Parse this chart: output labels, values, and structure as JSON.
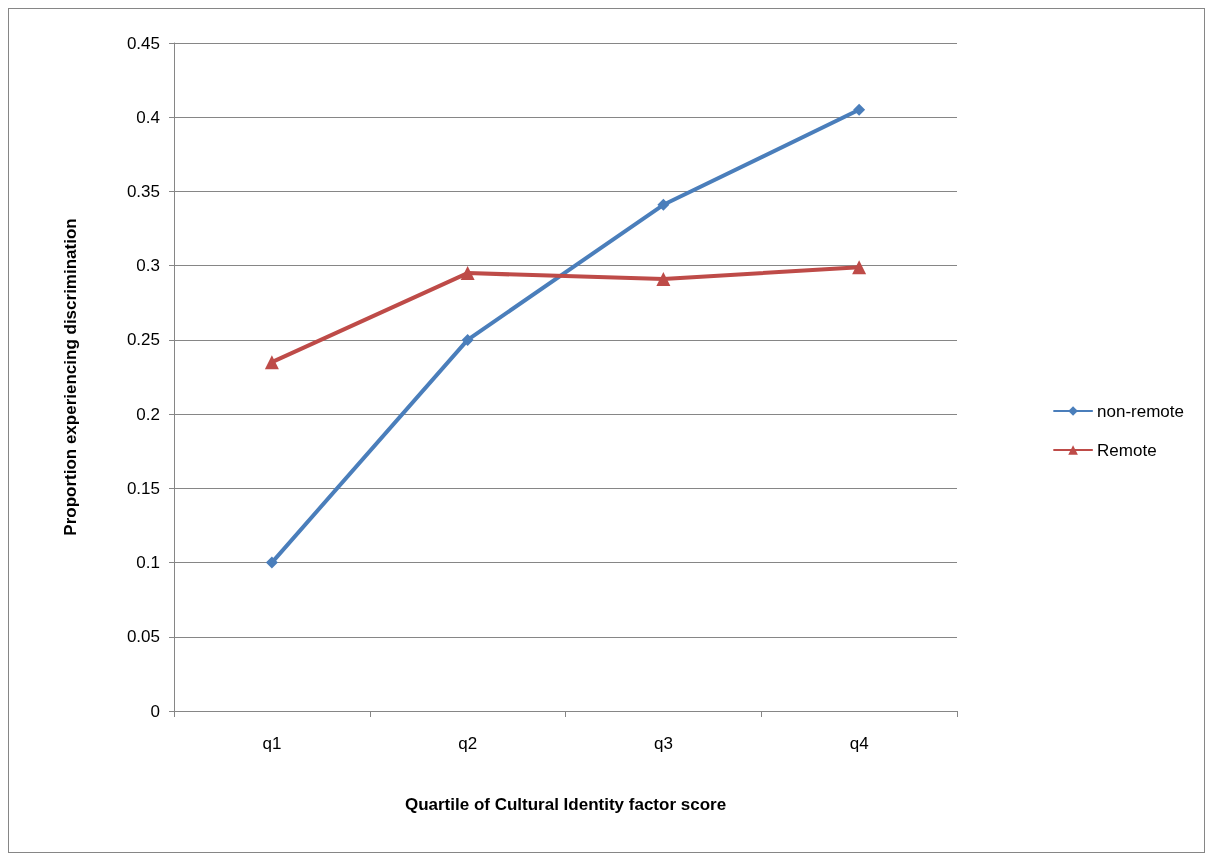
{
  "chart_data": {
    "type": "line",
    "xlabel": "Quartile of Cultural Identity factor score",
    "ylabel": "Proportion experiencing discrimination",
    "categories": [
      "q1",
      "q2",
      "q3",
      "q4"
    ],
    "series": [
      {
        "name": "non-remote",
        "color": "#4a7ebb",
        "marker": "diamond",
        "values": [
          0.1,
          0.25,
          0.341,
          0.405
        ]
      },
      {
        "name": "Remote",
        "color": "#be4b48",
        "marker": "triangle",
        "values": [
          0.235,
          0.295,
          0.291,
          0.299
        ]
      }
    ],
    "ylim": [
      0,
      0.45
    ],
    "yticks": [
      0,
      0.05,
      0.1,
      0.15,
      0.2,
      0.25,
      0.3,
      0.35,
      0.4,
      0.45
    ],
    "grid": "y",
    "legend": "right",
    "line_style": "solid"
  }
}
